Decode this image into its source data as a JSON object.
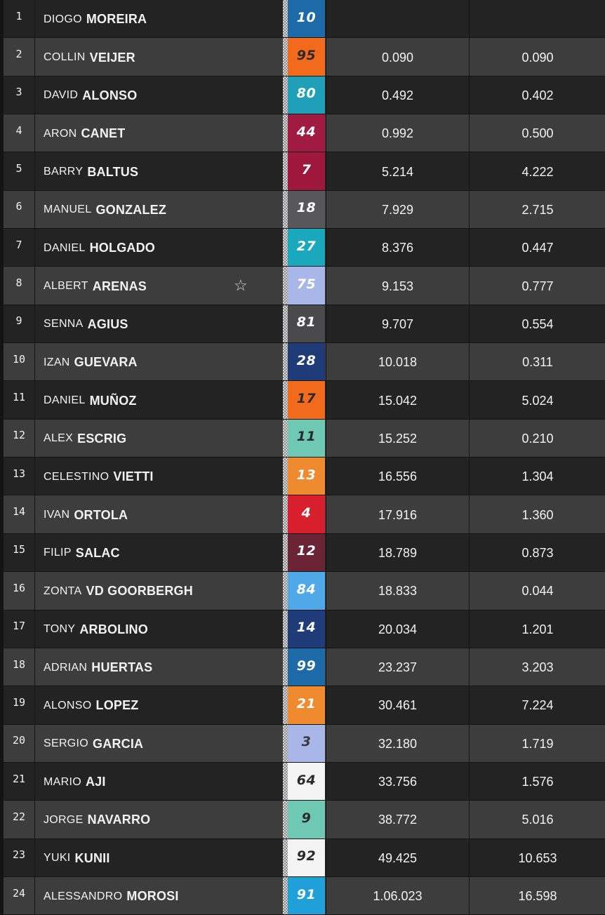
{
  "rows": [
    {
      "pos": "1",
      "first": "DIOGO",
      "last": "MOREIRA",
      "num": "10",
      "bg": "#1d6aa8",
      "fg": "#ffffff",
      "gap": "",
      "int": ""
    },
    {
      "pos": "2",
      "first": "COLLIN",
      "last": "VEIJER",
      "num": "95",
      "bg": "#f26b1d",
      "fg": "#2a2a2a",
      "gap": "0.090",
      "int": "0.090"
    },
    {
      "pos": "3",
      "first": "DAVID",
      "last": "ALONSO",
      "num": "80",
      "bg": "#1fa0b8",
      "fg": "#ffffff",
      "gap": "0.492",
      "int": "0.402"
    },
    {
      "pos": "4",
      "first": "ARON",
      "last": "CANET",
      "num": "44",
      "bg": "#a01a42",
      "fg": "#ffffff",
      "gap": "0.992",
      "int": "0.500"
    },
    {
      "pos": "5",
      "first": "BARRY",
      "last": "BALTUS",
      "num": "7",
      "bg": "#a0173e",
      "fg": "#ffffff",
      "gap": "5.214",
      "int": "4.222"
    },
    {
      "pos": "6",
      "first": "MANUEL",
      "last": "GONZALEZ",
      "num": "18",
      "bg": "#58585a",
      "fg": "#ffffff",
      "gap": "7.929",
      "int": "2.715"
    },
    {
      "pos": "7",
      "first": "DANIEL",
      "last": "HOLGADO",
      "num": "27",
      "bg": "#19a8bc",
      "fg": "#ffffff",
      "gap": "8.376",
      "int": "0.447"
    },
    {
      "pos": "8",
      "first": "ALBERT",
      "last": "ARENAS",
      "num": "75",
      "bg": "#a8b6e8",
      "fg": "#ffffff",
      "gap": "9.153",
      "int": "0.777",
      "star": "☆"
    },
    {
      "pos": "9",
      "first": "SENNA",
      "last": "AGIUS",
      "num": "81",
      "bg": "#4a4a4c",
      "fg": "#ffffff",
      "gap": "9.707",
      "int": "0.554"
    },
    {
      "pos": "10",
      "first": "IZAN",
      "last": "GUEVARA",
      "num": "28",
      "bg": "#1f3c78",
      "fg": "#ffffff",
      "gap": "10.018",
      "int": "0.311"
    },
    {
      "pos": "11",
      "first": "DANIEL",
      "last": "MUÑOZ",
      "num": "17",
      "bg": "#f26b1d",
      "fg": "#2a2a2a",
      "gap": "15.042",
      "int": "5.024"
    },
    {
      "pos": "12",
      "first": "ALEX",
      "last": "ESCRIG",
      "num": "11",
      "bg": "#6ec8b2",
      "fg": "#2a2a2a",
      "gap": "15.252",
      "int": "0.210"
    },
    {
      "pos": "13",
      "first": "CELESTINO",
      "last": "VIETTI",
      "num": "13",
      "bg": "#f08a2e",
      "fg": "#ffffff",
      "gap": "16.556",
      "int": "1.304"
    },
    {
      "pos": "14",
      "first": "IVAN",
      "last": "ORTOLA",
      "num": "4",
      "bg": "#d81f2d",
      "fg": "#ffffff",
      "gap": "17.916",
      "int": "1.360"
    },
    {
      "pos": "15",
      "first": "FILIP",
      "last": "SALAC",
      "num": "12",
      "bg": "#6a2436",
      "fg": "#ffffff",
      "gap": "18.789",
      "int": "0.873"
    },
    {
      "pos": "16",
      "first": "ZONTA",
      "last": "VD GOORBERGH",
      "num": "84",
      "bg": "#4fa8e8",
      "fg": "#ffffff",
      "gap": "18.833",
      "int": "0.044"
    },
    {
      "pos": "17",
      "first": "TONY",
      "last": "ARBOLINO",
      "num": "14",
      "bg": "#1f3c78",
      "fg": "#ffffff",
      "gap": "20.034",
      "int": "1.201"
    },
    {
      "pos": "18",
      "first": "ADRIAN",
      "last": "HUERTAS",
      "num": "99",
      "bg": "#1d6aa8",
      "fg": "#ffffff",
      "gap": "23.237",
      "int": "3.203"
    },
    {
      "pos": "19",
      "first": "ALONSO",
      "last": "LOPEZ",
      "num": "21",
      "bg": "#f08a2e",
      "fg": "#ffffff",
      "gap": "30.461",
      "int": "7.224"
    },
    {
      "pos": "20",
      "first": "SERGIO",
      "last": "GARCIA",
      "num": "3",
      "bg": "#a8b6e8",
      "fg": "#3a3a3a",
      "gap": "32.180",
      "int": "1.719"
    },
    {
      "pos": "21",
      "first": "MARIO",
      "last": "AJI",
      "num": "64",
      "bg": "#f4f4f4",
      "fg": "#2a2a2a",
      "gap": "33.756",
      "int": "1.576"
    },
    {
      "pos": "22",
      "first": "JORGE",
      "last": "NAVARRO",
      "num": "9",
      "bg": "#6ec8b2",
      "fg": "#2a2a2a",
      "gap": "38.772",
      "int": "5.016"
    },
    {
      "pos": "23",
      "first": "YUKI",
      "last": "KUNII",
      "num": "92",
      "bg": "#f4f4f4",
      "fg": "#2a2a2a",
      "gap": "49.425",
      "int": "10.653"
    },
    {
      "pos": "24",
      "first": "ALESSANDRO",
      "last": "MOROSI",
      "num": "91",
      "bg": "#1fa0d8",
      "fg": "#ffffff",
      "gap": "1.06.023",
      "int": "16.598"
    }
  ]
}
